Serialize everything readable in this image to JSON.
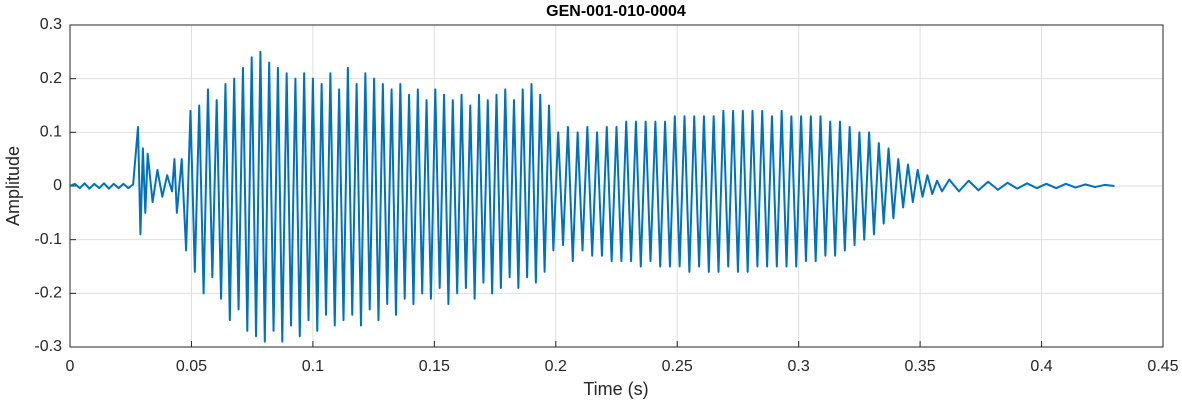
{
  "chart_data": {
    "type": "line",
    "title": "GEN-001-010-0004",
    "x_label": "Time (s)",
    "y_label": "Amplitude",
    "color": "#0072bd",
    "grid": true,
    "xlim": [
      0,
      0.45
    ],
    "xticks": [
      0,
      0.05,
      0.1,
      0.15,
      0.2,
      0.25,
      0.3,
      0.35,
      0.4,
      0.45
    ],
    "ylim": [
      -0.3,
      0.3
    ],
    "yticks": [
      -0.3,
      -0.2,
      -0.1,
      0,
      0.1,
      0.2,
      0.3
    ],
    "x": [
      0,
      0.002,
      0.004,
      0.006,
      0.008,
      0.01,
      0.012,
      0.014,
      0.016,
      0.018,
      0.02,
      0.022,
      0.024,
      0.026,
      0.028,
      0.029,
      0.03,
      0.031,
      0.032,
      0.034,
      0.036,
      0.038,
      0.04,
      0.042,
      0.043,
      0.044,
      0.046,
      0.0478,
      0.0496,
      0.0514,
      0.0532,
      0.055,
      0.0568,
      0.0586,
      0.0604,
      0.0622,
      0.064,
      0.0658,
      0.0676,
      0.0694,
      0.0712,
      0.073,
      0.0748,
      0.0766,
      0.0784,
      0.0802,
      0.082,
      0.0838,
      0.0856,
      0.0874,
      0.0892,
      0.091,
      0.0928,
      0.0946,
      0.0964,
      0.0982,
      0.1,
      0.1018,
      0.1036,
      0.1054,
      0.1072,
      0.109,
      0.1108,
      0.1126,
      0.1144,
      0.1162,
      0.118,
      0.1198,
      0.1216,
      0.1234,
      0.1252,
      0.127,
      0.1288,
      0.1306,
      0.1324,
      0.1342,
      0.136,
      0.1378,
      0.1396,
      0.1414,
      0.1432,
      0.145,
      0.1468,
      0.1486,
      0.1504,
      0.1522,
      0.154,
      0.1558,
      0.1576,
      0.1594,
      0.1612,
      0.163,
      0.1648,
      0.1666,
      0.1684,
      0.1702,
      0.172,
      0.1738,
      0.1756,
      0.1774,
      0.1792,
      0.181,
      0.1828,
      0.1846,
      0.1864,
      0.1882,
      0.19,
      0.1918,
      0.1936,
      0.1954,
      0.1972,
      0.199,
      0.201,
      0.203,
      0.205,
      0.207,
      0.209,
      0.211,
      0.213,
      0.215,
      0.217,
      0.219,
      0.221,
      0.223,
      0.225,
      0.227,
      0.229,
      0.231,
      0.233,
      0.235,
      0.237,
      0.239,
      0.241,
      0.243,
      0.245,
      0.247,
      0.249,
      0.251,
      0.253,
      0.255,
      0.257,
      0.259,
      0.261,
      0.263,
      0.265,
      0.267,
      0.269,
      0.271,
      0.273,
      0.275,
      0.277,
      0.279,
      0.281,
      0.283,
      0.285,
      0.287,
      0.289,
      0.291,
      0.293,
      0.295,
      0.297,
      0.299,
      0.301,
      0.303,
      0.305,
      0.307,
      0.309,
      0.311,
      0.313,
      0.315,
      0.317,
      0.319,
      0.321,
      0.323,
      0.325,
      0.327,
      0.329,
      0.331,
      0.333,
      0.335,
      0.337,
      0.339,
      0.341,
      0.343,
      0.345,
      0.347,
      0.349,
      0.351,
      0.353,
      0.355,
      0.357,
      0.359,
      0.362,
      0.366,
      0.37,
      0.374,
      0.378,
      0.382,
      0.386,
      0.39,
      0.394,
      0.398,
      0.402,
      0.406,
      0.41,
      0.414,
      0.418,
      0.422,
      0.426,
      0.43
    ],
    "values": [
      0,
      0.004,
      -0.004,
      0.005,
      -0.005,
      0.004,
      -0.004,
      0.005,
      -0.005,
      0.004,
      -0.004,
      0.004,
      -0.004,
      0.003,
      0.11,
      -0.09,
      0.07,
      -0.05,
      0.06,
      -0.03,
      0.03,
      -0.02,
      0.02,
      -0.01,
      0.05,
      -0.05,
      0.05,
      -0.12,
      0.14,
      -0.16,
      0.15,
      -0.2,
      0.18,
      -0.17,
      0.16,
      -0.21,
      0.19,
      -0.25,
      0.2,
      -0.23,
      0.22,
      -0.27,
      0.24,
      -0.28,
      0.25,
      -0.29,
      0.23,
      -0.27,
      0.22,
      -0.29,
      0.21,
      -0.26,
      0.2,
      -0.28,
      0.21,
      -0.25,
      0.2,
      -0.27,
      0.19,
      -0.24,
      0.21,
      -0.26,
      0.18,
      -0.25,
      0.22,
      -0.24,
      0.19,
      -0.26,
      0.21,
      -0.23,
      0.2,
      -0.25,
      0.19,
      -0.22,
      0.18,
      -0.24,
      0.19,
      -0.21,
      0.17,
      -0.22,
      0.18,
      -0.2,
      0.16,
      -0.21,
      0.18,
      -0.19,
      0.17,
      -0.22,
      0.16,
      -0.2,
      0.17,
      -0.19,
      0.15,
      -0.21,
      0.17,
      -0.18,
      0.16,
      -0.2,
      0.17,
      -0.19,
      0.18,
      -0.17,
      0.16,
      -0.19,
      0.18,
      -0.17,
      0.19,
      -0.18,
      0.17,
      -0.16,
      0.15,
      -0.12,
      0.1,
      -0.11,
      0.11,
      -0.14,
      0.1,
      -0.12,
      0.11,
      -0.13,
      0.1,
      -0.13,
      0.11,
      -0.14,
      0.11,
      -0.14,
      0.12,
      -0.14,
      0.12,
      -0.15,
      0.12,
      -0.14,
      0.12,
      -0.15,
      0.12,
      -0.15,
      0.13,
      -0.15,
      0.13,
      -0.16,
      0.13,
      -0.15,
      0.13,
      -0.16,
      0.13,
      -0.16,
      0.14,
      -0.15,
      0.14,
      -0.16,
      0.14,
      -0.16,
      0.14,
      -0.15,
      0.14,
      -0.15,
      0.13,
      -0.15,
      0.14,
      -0.15,
      0.13,
      -0.15,
      0.13,
      -0.14,
      0.13,
      -0.14,
      0.13,
      -0.13,
      0.12,
      -0.13,
      0.12,
      -0.12,
      0.11,
      -0.11,
      0.1,
      -0.1,
      0.1,
      -0.09,
      0.08,
      -0.07,
      0.07,
      -0.06,
      0.05,
      -0.04,
      0.04,
      -0.03,
      0.03,
      -0.02,
      0.02,
      -0.015,
      0.01,
      -0.01,
      0.012,
      -0.01,
      0.01,
      -0.008,
      0.008,
      -0.007,
      0.006,
      -0.005,
      0.005,
      -0.004,
      0.004,
      -0.004,
      0.004,
      -0.003,
      0.003,
      -0.002,
      0.002,
      0
    ]
  }
}
